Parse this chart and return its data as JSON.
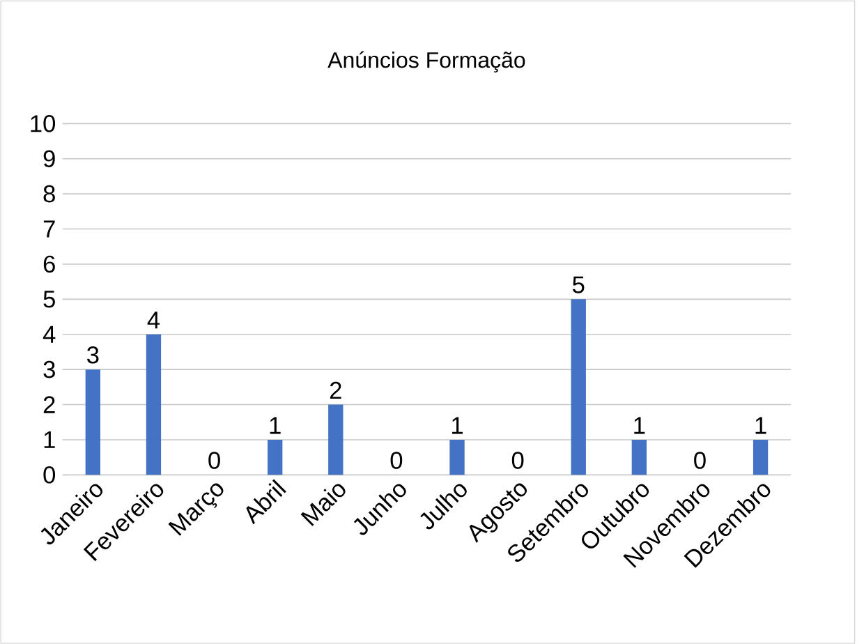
{
  "chart_data": {
    "type": "bar",
    "title": "Anúncios Formação",
    "categories": [
      "Janeiro",
      "Fevereiro",
      "Março",
      "Abril",
      "Maio",
      "Junho",
      "Julho",
      "Agosto",
      "Setembro",
      "Outubro",
      "Novembro",
      "Dezembro"
    ],
    "values": [
      3,
      4,
      0,
      1,
      2,
      0,
      1,
      0,
      5,
      1,
      0,
      1
    ],
    "color": "#4472c4",
    "ylim": [
      0,
      10
    ],
    "yticks": [
      0,
      1,
      2,
      3,
      4,
      5,
      6,
      7,
      8,
      9,
      10
    ],
    "grid": "y",
    "data_labels": true
  }
}
